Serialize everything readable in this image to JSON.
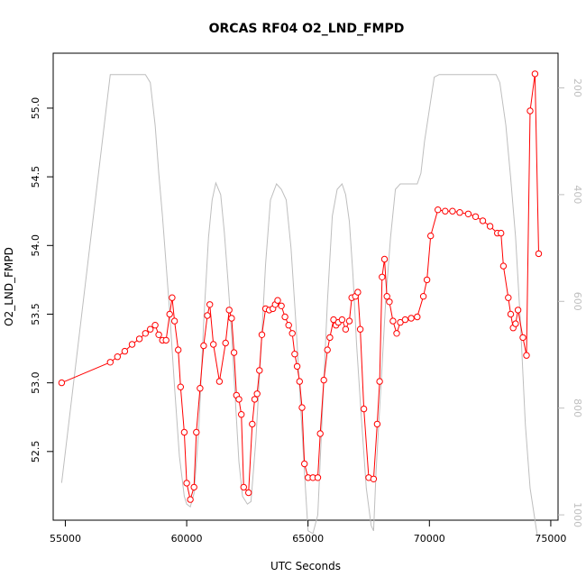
{
  "chart_data": {
    "type": "line",
    "title": "ORCAS RF04 O2_LND_FMPD",
    "xlabel": "UTC Seconds",
    "ylabel": "O2_LND_FMPD",
    "xlim": [
      54500,
      75300
    ],
    "ylim": [
      52.0,
      55.4
    ],
    "y2lim": [
      1010,
      135
    ],
    "y2_reversed": true,
    "x_ticks": [
      55000,
      60000,
      65000,
      70000,
      75000
    ],
    "y_ticks": [
      52.5,
      53.0,
      53.5,
      54.0,
      54.5,
      55.0
    ],
    "y2_ticks": [
      200,
      400,
      600,
      800,
      1000
    ],
    "grid": false,
    "series": [
      {
        "color": "#ff0000",
        "marker": "open-circle",
        "axis": "left",
        "points": [
          [
            54850,
            53.0
          ],
          [
            56850,
            53.15
          ],
          [
            57150,
            53.19
          ],
          [
            57450,
            53.23
          ],
          [
            57750,
            53.28
          ],
          [
            58050,
            53.32
          ],
          [
            58300,
            53.36
          ],
          [
            58500,
            53.39
          ],
          [
            58700,
            53.42
          ],
          [
            58850,
            53.35
          ],
          [
            59000,
            53.31
          ],
          [
            59150,
            53.31
          ],
          [
            59300,
            53.5
          ],
          [
            59400,
            53.62
          ],
          [
            59500,
            53.45
          ],
          [
            59650,
            53.24
          ],
          [
            59750,
            52.97
          ],
          [
            59900,
            52.64
          ],
          [
            60000,
            52.27
          ],
          [
            60150,
            52.15
          ],
          [
            60300,
            52.24
          ],
          [
            60400,
            52.64
          ],
          [
            60550,
            52.96
          ],
          [
            60700,
            53.27
          ],
          [
            60850,
            53.49
          ],
          [
            60950,
            53.57
          ],
          [
            61100,
            53.28
          ],
          [
            61350,
            53.01
          ],
          [
            61600,
            53.29
          ],
          [
            61750,
            53.53
          ],
          [
            61850,
            53.47
          ],
          [
            61950,
            53.22
          ],
          [
            62050,
            52.91
          ],
          [
            62150,
            52.88
          ],
          [
            62250,
            52.77
          ],
          [
            62350,
            52.24
          ],
          [
            62550,
            52.2
          ],
          [
            62700,
            52.7
          ],
          [
            62800,
            52.88
          ],
          [
            62900,
            52.92
          ],
          [
            63000,
            53.09
          ],
          [
            63100,
            53.35
          ],
          [
            63250,
            53.54
          ],
          [
            63400,
            53.53
          ],
          [
            63550,
            53.54
          ],
          [
            63650,
            53.57
          ],
          [
            63750,
            53.6
          ],
          [
            63900,
            53.56
          ],
          [
            64050,
            53.48
          ],
          [
            64200,
            53.42
          ],
          [
            64350,
            53.36
          ],
          [
            64450,
            53.21
          ],
          [
            64550,
            53.12
          ],
          [
            64650,
            53.01
          ],
          [
            64750,
            52.82
          ],
          [
            64850,
            52.41
          ],
          [
            65000,
            52.31
          ],
          [
            65200,
            52.31
          ],
          [
            65400,
            52.31
          ],
          [
            65500,
            52.63
          ],
          [
            65650,
            53.02
          ],
          [
            65800,
            53.24
          ],
          [
            65900,
            53.33
          ],
          [
            66050,
            53.46
          ],
          [
            66150,
            53.42
          ],
          [
            66250,
            53.44
          ],
          [
            66400,
            53.46
          ],
          [
            66550,
            53.39
          ],
          [
            66700,
            53.45
          ],
          [
            66800,
            53.62
          ],
          [
            66950,
            53.63
          ],
          [
            67050,
            53.66
          ],
          [
            67150,
            53.39
          ],
          [
            67300,
            52.81
          ],
          [
            67500,
            52.31
          ],
          [
            67700,
            52.3
          ],
          [
            67850,
            52.7
          ],
          [
            67950,
            53.01
          ],
          [
            68050,
            53.77
          ],
          [
            68150,
            53.9
          ],
          [
            68250,
            53.63
          ],
          [
            68350,
            53.59
          ],
          [
            68500,
            53.45
          ],
          [
            68650,
            53.36
          ],
          [
            68800,
            53.44
          ],
          [
            69000,
            53.46
          ],
          [
            69250,
            53.47
          ],
          [
            69500,
            53.48
          ],
          [
            69750,
            53.63
          ],
          [
            69900,
            53.75
          ],
          [
            70050,
            54.07
          ],
          [
            70350,
            54.26
          ],
          [
            70650,
            54.25
          ],
          [
            70950,
            54.25
          ],
          [
            71250,
            54.24
          ],
          [
            71600,
            54.23
          ],
          [
            71900,
            54.21
          ],
          [
            72200,
            54.18
          ],
          [
            72500,
            54.14
          ],
          [
            72800,
            54.09
          ],
          [
            72950,
            54.09
          ],
          [
            73050,
            53.85
          ],
          [
            73250,
            53.62
          ],
          [
            73350,
            53.5
          ],
          [
            73450,
            53.4
          ],
          [
            73550,
            53.43
          ],
          [
            73650,
            53.53
          ],
          [
            73850,
            53.33
          ],
          [
            74000,
            53.2
          ],
          [
            74150,
            54.98
          ],
          [
            74350,
            55.25
          ],
          [
            74500,
            53.94
          ]
        ]
      },
      {
        "color": "#bebebe",
        "marker": "none",
        "axis": "right",
        "points": [
          [
            54850,
            940
          ],
          [
            56850,
            175
          ],
          [
            57150,
            175
          ],
          [
            57450,
            175
          ],
          [
            57750,
            175
          ],
          [
            58050,
            175
          ],
          [
            58300,
            175
          ],
          [
            58500,
            190
          ],
          [
            58700,
            270
          ],
          [
            58850,
            360
          ],
          [
            59000,
            440
          ],
          [
            59150,
            530
          ],
          [
            59300,
            620
          ],
          [
            59500,
            760
          ],
          [
            59700,
            890
          ],
          [
            59900,
            965
          ],
          [
            60000,
            980
          ],
          [
            60150,
            985
          ],
          [
            60300,
            960
          ],
          [
            60500,
            840
          ],
          [
            60700,
            640
          ],
          [
            60900,
            480
          ],
          [
            61050,
            410
          ],
          [
            61200,
            378
          ],
          [
            61400,
            400
          ],
          [
            61550,
            470
          ],
          [
            61700,
            560
          ],
          [
            61850,
            660
          ],
          [
            62000,
            780
          ],
          [
            62150,
            900
          ],
          [
            62300,
            965
          ],
          [
            62500,
            980
          ],
          [
            62650,
            975
          ],
          [
            62850,
            860
          ],
          [
            63050,
            700
          ],
          [
            63250,
            530
          ],
          [
            63450,
            410
          ],
          [
            63700,
            380
          ],
          [
            63900,
            390
          ],
          [
            64100,
            410
          ],
          [
            64300,
            500
          ],
          [
            64500,
            640
          ],
          [
            64700,
            800
          ],
          [
            64850,
            920
          ],
          [
            65000,
            1030
          ],
          [
            65200,
            1035
          ],
          [
            65400,
            1000
          ],
          [
            65600,
            800
          ],
          [
            65800,
            600
          ],
          [
            66000,
            440
          ],
          [
            66200,
            390
          ],
          [
            66400,
            380
          ],
          [
            66550,
            400
          ],
          [
            66700,
            450
          ],
          [
            66850,
            550
          ],
          [
            67000,
            680
          ],
          [
            67200,
            820
          ],
          [
            67400,
            950
          ],
          [
            67600,
            1020
          ],
          [
            67700,
            1030
          ],
          [
            67800,
            920
          ],
          [
            68000,
            760
          ],
          [
            68200,
            600
          ],
          [
            68400,
            480
          ],
          [
            68600,
            390
          ],
          [
            68800,
            380
          ],
          [
            69000,
            380
          ],
          [
            69300,
            380
          ],
          [
            69500,
            380
          ],
          [
            69650,
            360
          ],
          [
            69800,
            300
          ],
          [
            70000,
            240
          ],
          [
            70200,
            180
          ],
          [
            70400,
            175
          ],
          [
            70700,
            175
          ],
          [
            71000,
            175
          ],
          [
            71500,
            175
          ],
          [
            72000,
            175
          ],
          [
            72500,
            175
          ],
          [
            72750,
            175
          ],
          [
            72900,
            190
          ],
          [
            73150,
            270
          ],
          [
            73350,
            370
          ],
          [
            73550,
            480
          ],
          [
            73750,
            640
          ],
          [
            73950,
            830
          ],
          [
            74150,
            950
          ],
          [
            74350,
            1010
          ],
          [
            74450,
            1040
          ]
        ]
      }
    ]
  }
}
